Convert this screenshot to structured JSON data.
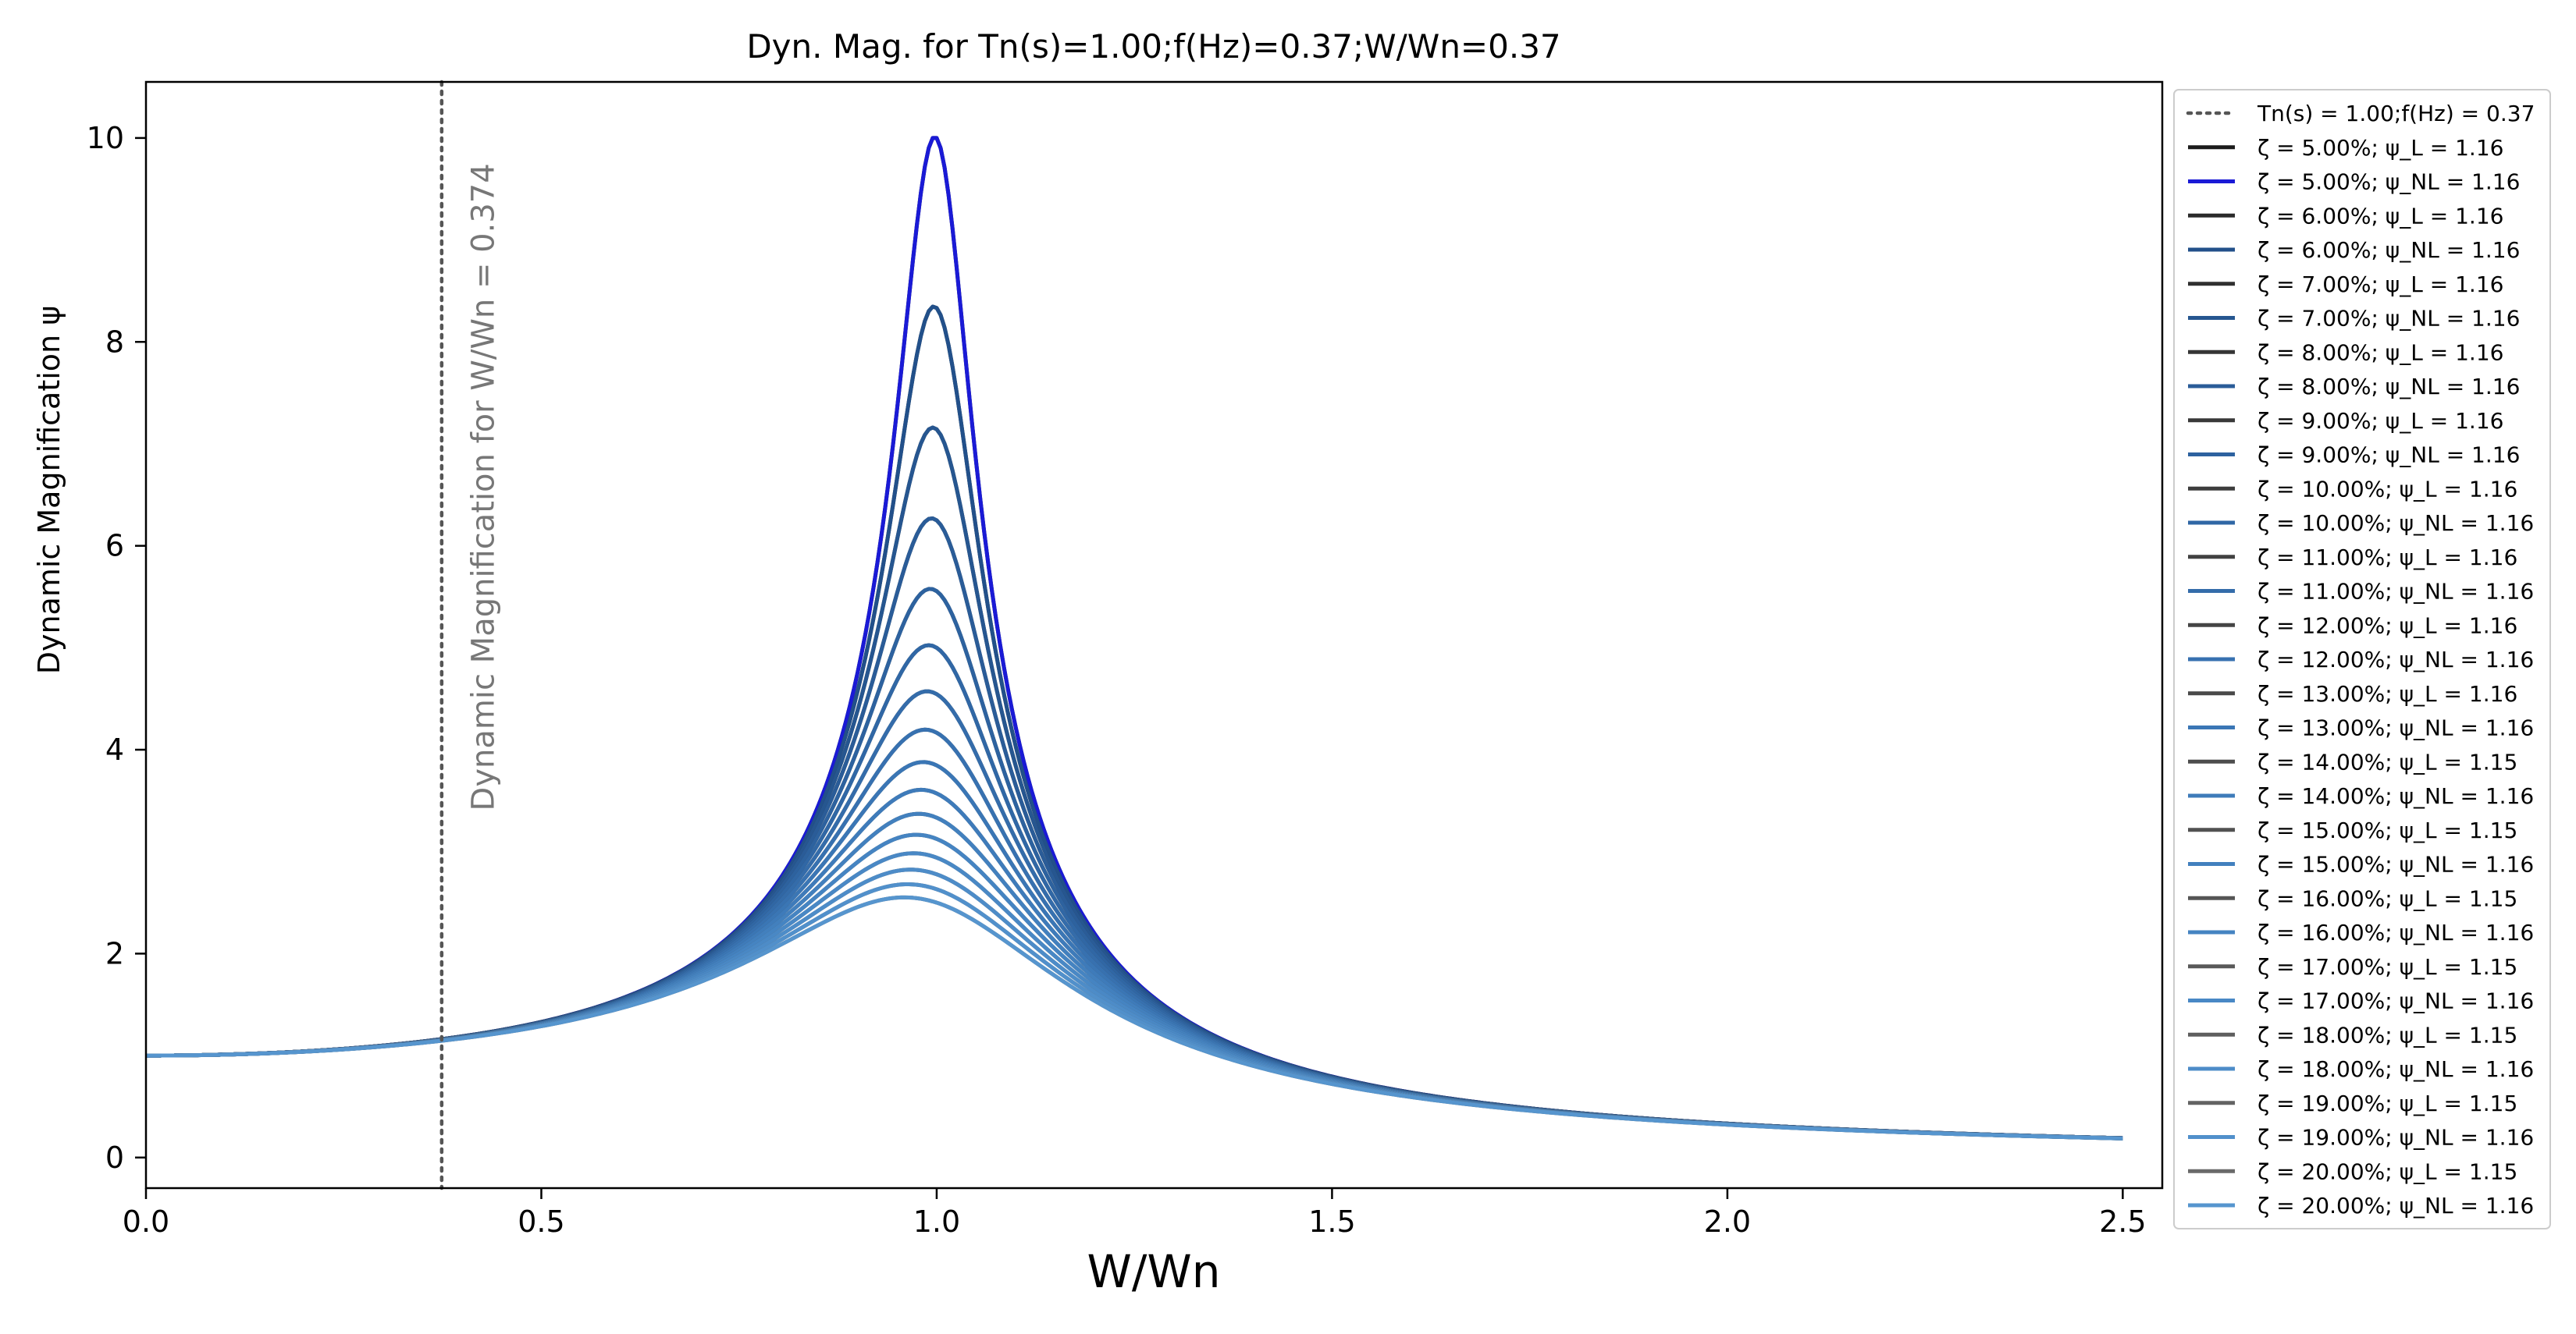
{
  "chart_data": {
    "type": "line",
    "title": "Dyn. Mag. for Tn(s)=1.00;f(Hz)=0.37;W/Wn=0.37",
    "xlabel": "W/Wn",
    "ylabel": "Dynamic Magnification ψ",
    "xlim": [
      0.0,
      2.55
    ],
    "ylim": [
      -0.3,
      10.55
    ],
    "x_ticks": [
      0.0,
      0.5,
      1.0,
      1.5,
      2.0,
      2.5
    ],
    "x_tick_labels": [
      "0.0",
      "0.5",
      "1.0",
      "1.5",
      "2.0",
      "2.5"
    ],
    "y_ticks": [
      0,
      2,
      4,
      6,
      8,
      10
    ],
    "y_tick_labels": [
      "0",
      "2",
      "4",
      "6",
      "8",
      "10"
    ],
    "x_range": [
      0.0,
      2.5
    ],
    "grid": false,
    "legend_position": "outside right",
    "vline": {
      "x": 0.374,
      "label": "Tn(s) = 1.00;f(Hz) = 0.37",
      "color": "#555555"
    },
    "annotation": {
      "text": "Dynamic Magnification for W/Wn = 0.374",
      "x": 0.44,
      "y": 3.4,
      "rotation": -90,
      "color": "#777777"
    },
    "series": [
      {
        "name": "ζ = 5.00%; ψ_L = 1.16",
        "zeta": 0.05,
        "color": "#1c1c1c"
      },
      {
        "name": "ζ = 5.00%; ψ_NL = 1.16",
        "zeta": 0.05,
        "color": "#1a1ad6"
      },
      {
        "name": "ζ = 6.00%; ψ_L = 1.16",
        "zeta": 0.06,
        "color": "#2b2b2b"
      },
      {
        "name": "ζ = 6.00%; ψ_NL = 1.16",
        "zeta": 0.06,
        "color": "#22508a"
      },
      {
        "name": "ζ = 7.00%; ψ_L = 1.16",
        "zeta": 0.07,
        "color": "#303030"
      },
      {
        "name": "ζ = 7.00%; ψ_NL = 1.16",
        "zeta": 0.07,
        "color": "#265690"
      },
      {
        "name": "ζ = 8.00%; ψ_L = 1.16",
        "zeta": 0.08,
        "color": "#353535"
      },
      {
        "name": "ζ = 8.00%; ψ_NL = 1.16",
        "zeta": 0.08,
        "color": "#2a5c98"
      },
      {
        "name": "ζ = 9.00%; ψ_L = 1.16",
        "zeta": 0.09,
        "color": "#393939"
      },
      {
        "name": "ζ = 9.00%; ψ_NL = 1.16",
        "zeta": 0.09,
        "color": "#2d629f"
      },
      {
        "name": "ζ = 10.00%; ψ_L = 1.16",
        "zeta": 0.1,
        "color": "#3d3d3d"
      },
      {
        "name": "ζ = 10.00%; ψ_NL = 1.16",
        "zeta": 0.1,
        "color": "#3067a5"
      },
      {
        "name": "ζ = 11.00%; ψ_L = 1.16",
        "zeta": 0.11,
        "color": "#414141"
      },
      {
        "name": "ζ = 11.00%; ψ_NL = 1.16",
        "zeta": 0.11,
        "color": "#346caa"
      },
      {
        "name": "ζ = 12.00%; ψ_L = 1.16",
        "zeta": 0.12,
        "color": "#454545"
      },
      {
        "name": "ζ = 12.00%; ψ_NL = 1.16",
        "zeta": 0.12,
        "color": "#3771b0"
      },
      {
        "name": "ζ = 13.00%; ψ_L = 1.16",
        "zeta": 0.13,
        "color": "#494949"
      },
      {
        "name": "ζ = 13.00%; ψ_NL = 1.16",
        "zeta": 0.13,
        "color": "#3a76b5"
      },
      {
        "name": "ζ = 14.00%; ψ_L = 1.15",
        "zeta": 0.14,
        "color": "#4d4d4d"
      },
      {
        "name": "ζ = 14.00%; ψ_NL = 1.16",
        "zeta": 0.14,
        "color": "#3e7bba"
      },
      {
        "name": "ζ = 15.00%; ψ_L = 1.15",
        "zeta": 0.15,
        "color": "#515151"
      },
      {
        "name": "ζ = 15.00%; ψ_NL = 1.16",
        "zeta": 0.15,
        "color": "#4280be"
      },
      {
        "name": "ζ = 16.00%; ψ_L = 1.15",
        "zeta": 0.16,
        "color": "#555555"
      },
      {
        "name": "ζ = 16.00%; ψ_NL = 1.16",
        "zeta": 0.16,
        "color": "#4584c2"
      },
      {
        "name": "ζ = 17.00%; ψ_L = 1.15",
        "zeta": 0.17,
        "color": "#595959"
      },
      {
        "name": "ζ = 17.00%; ψ_NL = 1.16",
        "zeta": 0.17,
        "color": "#4988c5"
      },
      {
        "name": "ζ = 18.00%; ψ_L = 1.15",
        "zeta": 0.18,
        "color": "#5e5e5e"
      },
      {
        "name": "ζ = 18.00%; ψ_NL = 1.16",
        "zeta": 0.18,
        "color": "#4d8cc8"
      },
      {
        "name": "ζ = 19.00%; ψ_L = 1.15",
        "zeta": 0.19,
        "color": "#636363"
      },
      {
        "name": "ζ = 19.00%; ψ_NL = 1.16",
        "zeta": 0.19,
        "color": "#5190cb"
      },
      {
        "name": "ζ = 20.00%; ψ_L = 1.15",
        "zeta": 0.2,
        "color": "#6a6a6a"
      },
      {
        "name": "ζ = 20.00%; ψ_NL = 1.16",
        "zeta": 0.2,
        "color": "#5695ce"
      }
    ]
  }
}
